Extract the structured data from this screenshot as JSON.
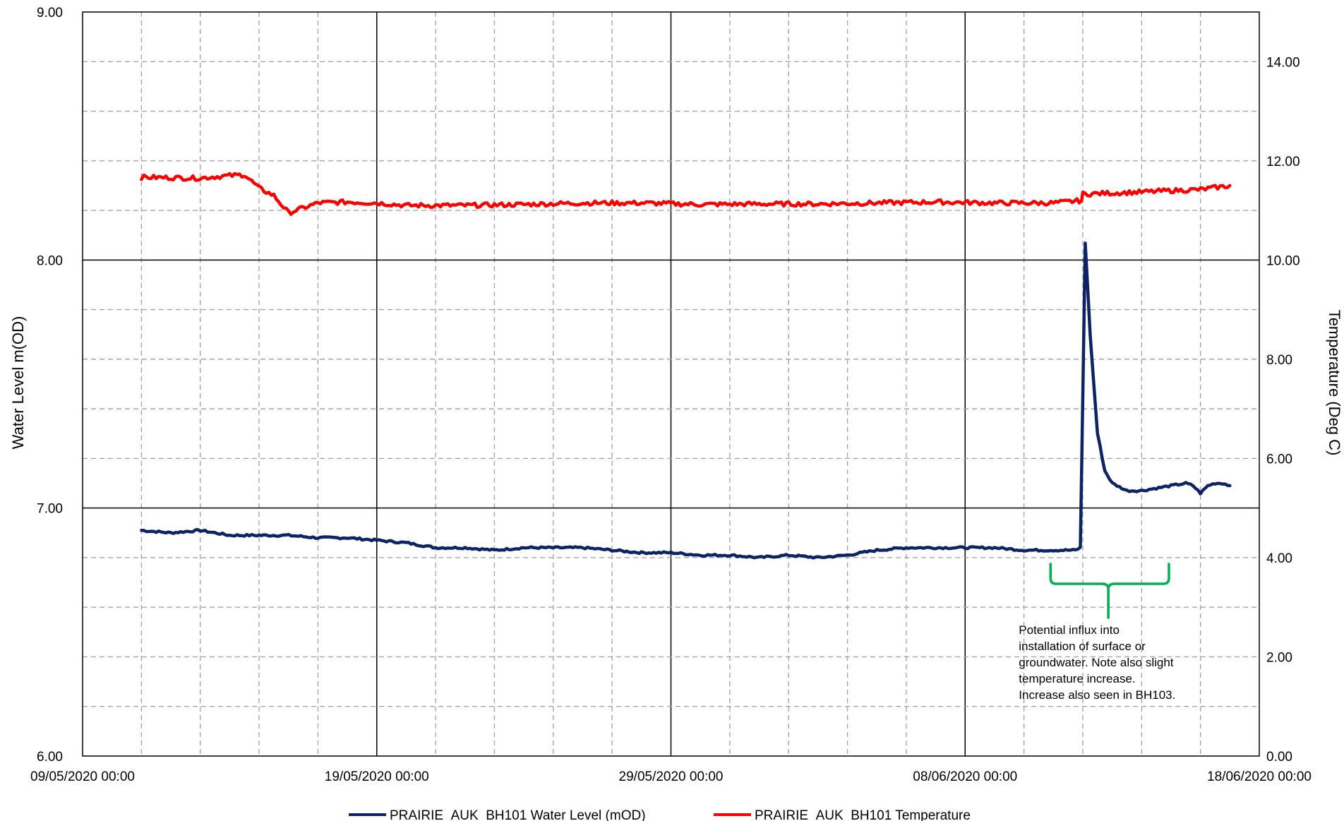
{
  "chart_data": {
    "type": "line",
    "title": "",
    "xlabel": "",
    "ylabel": "Water Level m(OD)",
    "y2label": "Temperature (Deg C)",
    "x_range": [
      "09/05/2020 00:00",
      "18/06/2020 00:00"
    ],
    "ylim": [
      6.0,
      9.0
    ],
    "y2lim": [
      0.0,
      15.0
    ],
    "x_tick_labels": [
      "09/05/2020 00:00",
      "19/05/2020 00:00",
      "29/05/2020 00:00",
      "08/06/2020 00:00",
      "18/06/2020 00:00"
    ],
    "y_tick_labels": [
      "6.00",
      "7.00",
      "8.00",
      "9.00"
    ],
    "y2_tick_labels": [
      "0.00",
      "2.00",
      "4.00",
      "6.00",
      "8.00",
      "10.00",
      "12.00",
      "14.00"
    ],
    "grid": true,
    "legend_position": "bottom",
    "series": [
      {
        "name": "PRAIRIE_AUK_BH101 Water Level (mOD)",
        "axis": "left",
        "color": "#0d2366",
        "x": [
          "11/05/2020 00:00",
          "12/05/2020 00:00",
          "13/05/2020 00:00",
          "14/05/2020 00:00",
          "15/05/2020 00:00",
          "16/05/2020 00:00",
          "17/05/2020 00:00",
          "18/05/2020 00:00",
          "19/05/2020 00:00",
          "20/05/2020 00:00",
          "21/05/2020 00:00",
          "22/05/2020 00:00",
          "23/05/2020 00:00",
          "24/05/2020 00:00",
          "25/05/2020 00:00",
          "26/05/2020 00:00",
          "27/05/2020 00:00",
          "28/05/2020 00:00",
          "29/05/2020 00:00",
          "30/05/2020 00:00",
          "31/05/2020 00:00",
          "01/06/2020 00:00",
          "02/06/2020 00:00",
          "03/06/2020 00:00",
          "04/06/2020 00:00",
          "05/06/2020 00:00",
          "06/06/2020 00:00",
          "07/06/2020 00:00",
          "08/06/2020 00:00",
          "09/06/2020 00:00",
          "10/06/2020 00:00",
          "11/06/2020 00:00",
          "11/06/2020 18:00",
          "11/06/2020 22:00",
          "12/06/2020 02:00",
          "12/06/2020 06:00",
          "12/06/2020 12:00",
          "12/06/2020 18:00",
          "13/06/2020 00:00",
          "13/06/2020 12:00",
          "14/06/2020 00:00",
          "14/06/2020 12:00",
          "15/06/2020 00:00",
          "15/06/2020 12:00",
          "15/06/2020 18:00",
          "16/06/2020 00:00",
          "16/06/2020 06:00",
          "16/06/2020 12:00",
          "16/06/2020 18:00",
          "17/06/2020 00:00"
        ],
        "values": [
          6.91,
          6.9,
          6.91,
          6.89,
          6.89,
          6.89,
          6.88,
          6.88,
          6.87,
          6.86,
          6.84,
          6.84,
          6.83,
          6.84,
          6.84,
          6.84,
          6.83,
          6.82,
          6.82,
          6.81,
          6.81,
          6.8,
          6.81,
          6.8,
          6.81,
          6.83,
          6.84,
          6.84,
          6.84,
          6.84,
          6.83,
          6.83,
          6.83,
          6.84,
          8.07,
          7.7,
          7.3,
          7.15,
          7.1,
          7.07,
          7.07,
          7.08,
          7.09,
          7.1,
          7.09,
          7.06,
          7.09,
          7.1,
          7.1,
          7.09
        ]
      },
      {
        "name": "PRAIRIE_AUK_BH101 Temperature",
        "axis": "right",
        "color": "#ff0000",
        "x": [
          "11/05/2020 00:00",
          "12/05/2020 00:00",
          "13/05/2020 00:00",
          "13/05/2020 12:00",
          "14/05/2020 00:00",
          "14/05/2020 12:00",
          "15/05/2020 00:00",
          "15/05/2020 12:00",
          "16/05/2020 00:00",
          "17/05/2020 00:00",
          "18/05/2020 00:00",
          "19/05/2020 00:00",
          "20/05/2020 00:00",
          "22/05/2020 00:00",
          "24/05/2020 00:00",
          "26/05/2020 00:00",
          "28/05/2020 00:00",
          "30/05/2020 00:00",
          "01/06/2020 00:00",
          "03/06/2020 00:00",
          "05/06/2020 00:00",
          "07/06/2020 00:00",
          "09/06/2020 00:00",
          "11/06/2020 00:00",
          "11/06/2020 23:00",
          "12/06/2020 00:00",
          "13/06/2020 00:00",
          "14/06/2020 00:00",
          "15/06/2020 00:00",
          "16/06/2020 00:00",
          "17/06/2020 00:00"
        ],
        "values": [
          11.67,
          11.66,
          11.65,
          11.68,
          11.7,
          11.72,
          11.45,
          11.3,
          10.95,
          11.15,
          11.17,
          11.15,
          11.1,
          11.1,
          11.12,
          11.15,
          11.15,
          11.12,
          11.13,
          11.13,
          11.15,
          11.17,
          11.15,
          11.15,
          11.2,
          11.33,
          11.35,
          11.37,
          11.4,
          11.42,
          11.5
        ]
      }
    ],
    "annotations": [
      {
        "text": "Potential influx into installation of surface or groundwater. Note also slight temperature increase. Increase also seen in BH103.",
        "lines": [
          "Potential influx into",
          "installation of surface or",
          "groundwater. Note also slight",
          "temperature increase.",
          "Increase also seen in BH103."
        ],
        "color": "#00b050",
        "bracket_x_range": [
          "11/06/2020 00:00",
          "15/06/2020 00:00"
        ],
        "bracket_y": 6.78
      }
    ]
  }
}
